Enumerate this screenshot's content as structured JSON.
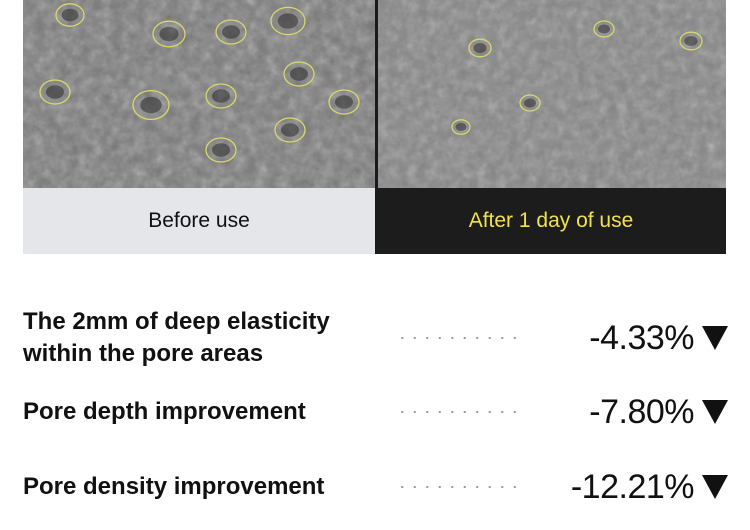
{
  "comparison": {
    "before_label": "Before use",
    "after_label": "After 1 day of use",
    "after_label_color": "#f2e24a",
    "pore_marker_color": "#d8d86a"
  },
  "metrics": [
    {
      "label_line1": "The 2mm of deep elasticity",
      "label_line2": "within the pore areas",
      "value": "-4.33%",
      "trend_icon": "down-triangle"
    },
    {
      "label_line1": "Pore depth improvement",
      "label_line2": "",
      "value": "-7.80%",
      "trend_icon": "down-triangle"
    },
    {
      "label_line1": "Pore density improvement",
      "label_line2": "",
      "value": "-12.21%",
      "trend_icon": "down-triangle"
    }
  ]
}
